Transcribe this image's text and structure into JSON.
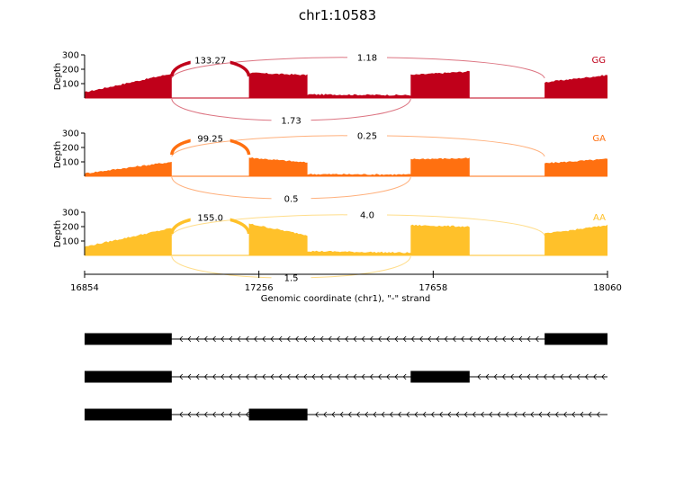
{
  "chart_data": {
    "type": "area",
    "title": "chr1:10583",
    "xlabel": "Genomic coordinate (chr1), \"-\" strand",
    "ylabel": "Depth",
    "xlim": [
      16854,
      18060
    ],
    "xticks": [
      "16854",
      "17256",
      "17658",
      "18060"
    ],
    "ylim": [
      0,
      300
    ],
    "yticks": [
      "100",
      "200",
      "300"
    ],
    "exon_blocks": [
      {
        "start": 16854,
        "end": 17055
      },
      {
        "start": 17233,
        "end": 17368
      },
      {
        "start": 17606,
        "end": 17742
      },
      {
        "start": 17915,
        "end": 18060
      }
    ],
    "series": [
      {
        "name": "GG",
        "color": "#c0001a",
        "depth_levels": [
          {
            "start": 16854,
            "end": 17055,
            "from": 40,
            "to": 170
          },
          {
            "start": 17233,
            "end": 17368,
            "from": 175,
            "to": 160
          },
          {
            "start": 17368,
            "end": 17606,
            "from": 25,
            "to": 20
          },
          {
            "start": 17606,
            "end": 17742,
            "from": 160,
            "to": 185
          },
          {
            "start": 17915,
            "end": 18060,
            "from": 110,
            "to": 160
          }
        ],
        "junctions": [
          {
            "start": 17055,
            "end": 17233,
            "value": "133.27",
            "side": "above"
          },
          {
            "start": 17055,
            "end": 17915,
            "value": "1.18",
            "side": "above"
          },
          {
            "start": 17055,
            "end": 17606,
            "value": "1.73",
            "side": "below"
          }
        ]
      },
      {
        "name": "GA",
        "color": "#ff7010",
        "depth_levels": [
          {
            "start": 16854,
            "end": 17055,
            "from": 20,
            "to": 100
          },
          {
            "start": 17233,
            "end": 17368,
            "from": 130,
            "to": 95
          },
          {
            "start": 17368,
            "end": 17606,
            "from": 15,
            "to": 12
          },
          {
            "start": 17606,
            "end": 17742,
            "from": 120,
            "to": 125
          },
          {
            "start": 17915,
            "end": 18060,
            "from": 90,
            "to": 120
          }
        ],
        "junctions": [
          {
            "start": 17055,
            "end": 17233,
            "value": "99.25",
            "side": "above"
          },
          {
            "start": 17055,
            "end": 17915,
            "value": "0.25",
            "side": "above"
          },
          {
            "start": 17055,
            "end": 17606,
            "value": "0.5",
            "side": "below"
          }
        ]
      },
      {
        "name": "AA",
        "color": "#ffc12a",
        "depth_levels": [
          {
            "start": 16854,
            "end": 17055,
            "from": 60,
            "to": 190
          },
          {
            "start": 17233,
            "end": 17368,
            "from": 220,
            "to": 140
          },
          {
            "start": 17368,
            "end": 17606,
            "from": 30,
            "to": 18
          },
          {
            "start": 17606,
            "end": 17742,
            "from": 210,
            "to": 200
          },
          {
            "start": 17915,
            "end": 18060,
            "from": 150,
            "to": 210
          }
        ],
        "junctions": [
          {
            "start": 17055,
            "end": 17233,
            "value": "155.0",
            "side": "above"
          },
          {
            "start": 17055,
            "end": 17915,
            "value": "4.0",
            "side": "above"
          },
          {
            "start": 17055,
            "end": 17606,
            "value": "1.5",
            "side": "below"
          }
        ]
      }
    ],
    "transcripts": [
      {
        "exons": [
          [
            16854,
            17055
          ],
          [
            17915,
            18060
          ]
        ]
      },
      {
        "exons": [
          [
            16854,
            17055
          ],
          [
            17606,
            17742
          ]
        ]
      },
      {
        "exons": [
          [
            16854,
            17055
          ],
          [
            17233,
            17368
          ]
        ]
      }
    ]
  }
}
